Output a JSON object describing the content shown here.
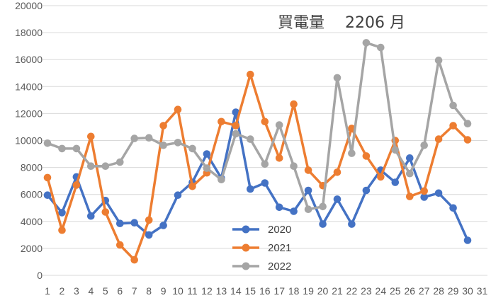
{
  "chart_data": {
    "type": "line",
    "title": "買電量　 2206 月",
    "xlabel": "",
    "ylabel": "",
    "x": [
      1,
      2,
      3,
      4,
      5,
      6,
      7,
      8,
      9,
      10,
      11,
      12,
      13,
      14,
      15,
      16,
      17,
      18,
      19,
      20,
      21,
      22,
      23,
      24,
      25,
      26,
      27,
      28,
      29,
      30
    ],
    "x_ticks": [
      1,
      2,
      3,
      4,
      5,
      6,
      7,
      8,
      9,
      10,
      11,
      12,
      13,
      14,
      15,
      16,
      17,
      18,
      19,
      20,
      21,
      22,
      23,
      24,
      25,
      26,
      27,
      28,
      29,
      30,
      31
    ],
    "xlim": [
      1,
      31
    ],
    "ylim": [
      0,
      20000
    ],
    "y_ticks": [
      0,
      2000,
      4000,
      6000,
      8000,
      10000,
      12000,
      14000,
      16000,
      18000,
      20000
    ],
    "grid": "horizontal",
    "legend_position": "bottom-center",
    "series": [
      {
        "name": "2020",
        "color": "#4472C4",
        "values": [
          5950,
          4650,
          7300,
          4400,
          5550,
          3850,
          3900,
          3000,
          3700,
          5950,
          6900,
          9000,
          7200,
          12100,
          6400,
          6850,
          5050,
          4750,
          6300,
          3800,
          5650,
          3800,
          6300,
          7800,
          6900,
          8700,
          5800,
          6100,
          5000,
          2600
        ]
      },
      {
        "name": "2021",
        "color": "#ED7D31",
        "values": [
          7250,
          3350,
          6700,
          10300,
          4700,
          2250,
          1150,
          4100,
          11100,
          12300,
          6600,
          7600,
          11400,
          11100,
          14900,
          11400,
          8700,
          12700,
          7800,
          6650,
          7650,
          10900,
          8850,
          7300,
          10000,
          5850,
          6250,
          10100,
          11100,
          10050
        ]
      },
      {
        "name": "2022",
        "color": "#A5A5A5",
        "values": [
          9800,
          9400,
          9400,
          8100,
          8100,
          8400,
          10150,
          10200,
          9650,
          9850,
          9400,
          7950,
          7100,
          10500,
          10100,
          8250,
          11150,
          8100,
          4900,
          5100,
          14650,
          9050,
          17250,
          16900,
          9300,
          7550,
          9650,
          15950,
          12600,
          11250
        ]
      }
    ]
  }
}
